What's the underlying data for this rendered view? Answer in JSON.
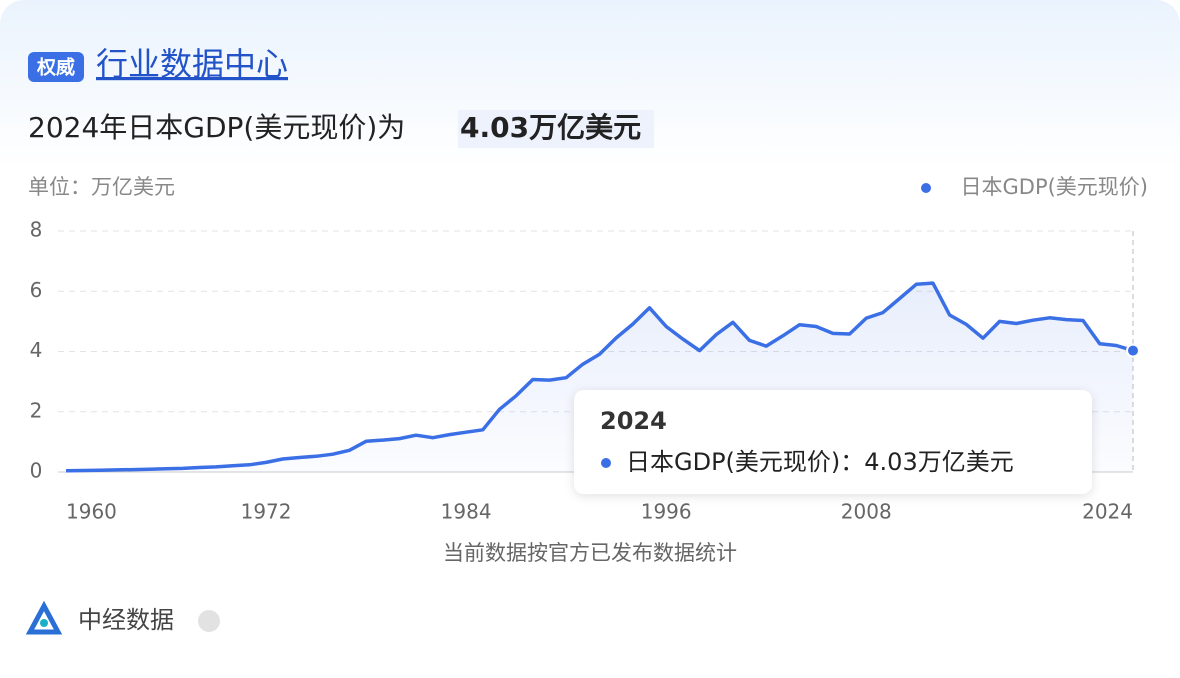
{
  "badge": "权威",
  "link": "行业数据中心",
  "headline": "2024年日本GDP(美元现价)为",
  "highlight": "4.03万亿美元",
  "chart_data": {
    "type": "line",
    "unit_label": "单位：万亿美元",
    "x": [
      1960,
      1961,
      1962,
      1963,
      1964,
      1965,
      1966,
      1967,
      1968,
      1969,
      1970,
      1971,
      1972,
      1973,
      1974,
      1975,
      1976,
      1977,
      1978,
      1979,
      1980,
      1981,
      1982,
      1983,
      1984,
      1985,
      1986,
      1987,
      1988,
      1989,
      1990,
      1991,
      1992,
      1993,
      1994,
      1995,
      1996,
      1997,
      1998,
      1999,
      2000,
      2001,
      2002,
      2003,
      2004,
      2005,
      2006,
      2007,
      2008,
      2009,
      2010,
      2011,
      2012,
      2013,
      2014,
      2015,
      2016,
      2017,
      2018,
      2019,
      2020,
      2021,
      2022,
      2023,
      2024
    ],
    "series": [
      {
        "name": "日本GDP(美元现价)",
        "color": "#3b6fe6",
        "values": [
          0.04,
          0.05,
          0.06,
          0.07,
          0.08,
          0.09,
          0.11,
          0.12,
          0.15,
          0.17,
          0.21,
          0.24,
          0.32,
          0.43,
          0.48,
          0.52,
          0.59,
          0.72,
          1.02,
          1.06,
          1.11,
          1.22,
          1.14,
          1.24,
          1.32,
          1.4,
          2.08,
          2.53,
          3.07,
          3.05,
          3.13,
          3.58,
          3.91,
          4.45,
          4.91,
          5.45,
          4.83,
          4.41,
          4.03,
          4.56,
          4.97,
          4.37,
          4.18,
          4.52,
          4.89,
          4.83,
          4.6,
          4.58,
          5.11,
          5.29,
          5.76,
          6.23,
          6.27,
          5.21,
          4.9,
          4.44,
          5.0,
          4.93,
          5.04,
          5.12,
          5.06,
          5.03,
          4.26,
          4.2,
          4.03
        ]
      }
    ],
    "xlim": [
      1960,
      2024
    ],
    "xticks": [
      1960,
      1972,
      1984,
      1996,
      2008,
      2024
    ],
    "ylim": [
      0,
      8
    ],
    "yticks": [
      0,
      2,
      4,
      6,
      8
    ],
    "grid": true,
    "tooltip_label": "日本GDP(美元现价)：4.03万亿美元"
  },
  "footnote": "当前数据按官方已发布数据统计",
  "source": "中经数据"
}
